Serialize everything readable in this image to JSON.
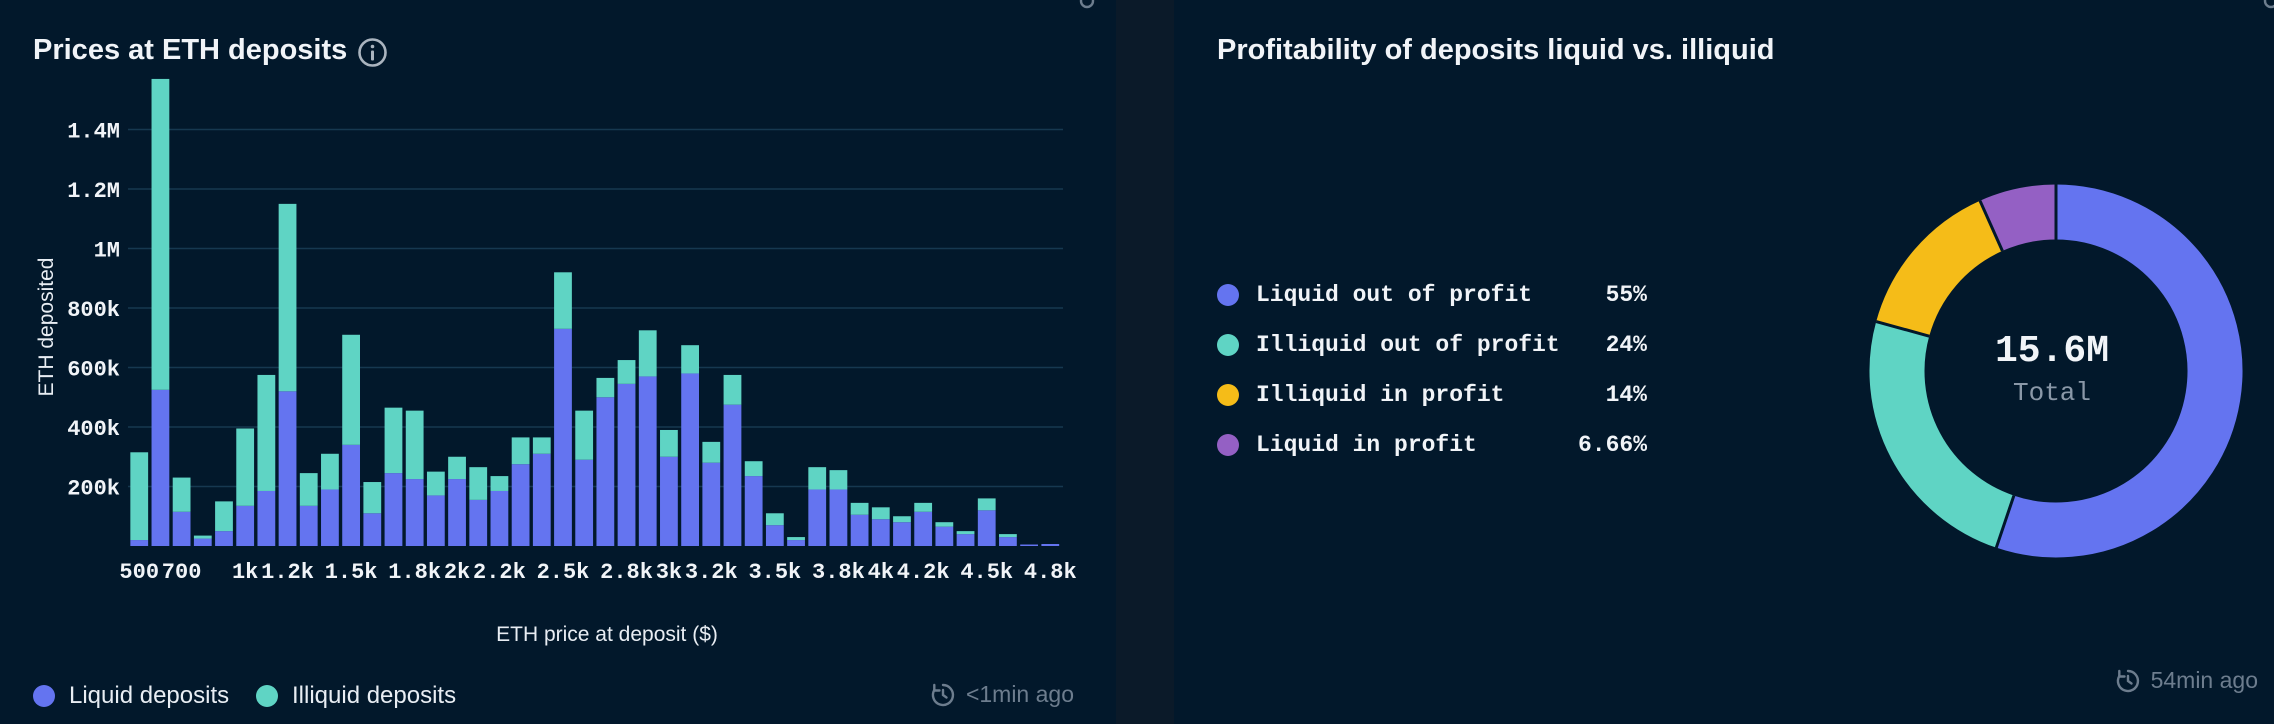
{
  "left": {
    "title": "Prices at ETH deposits",
    "timestamp": "<1min ago",
    "legend": [
      {
        "label": "Liquid deposits",
        "color": "#6474f0"
      },
      {
        "label": "Illiquid deposits",
        "color": "#5fd4c4"
      }
    ]
  },
  "right": {
    "title": "Profitability of deposits liquid vs. illiquid",
    "timestamp": "54min ago",
    "center_value": "15.6M",
    "center_label": "Total"
  },
  "chart_data": [
    {
      "type": "bar",
      "stacked": true,
      "title": "Prices at ETH deposits",
      "xlabel": "ETH price at deposit ($)",
      "ylabel": "ETH deposited",
      "xlim": [
        480,
        4860
      ],
      "ylim": [
        0,
        1600000
      ],
      "bin_width": 100,
      "x": [
        500,
        600,
        700,
        800,
        900,
        1000,
        1100,
        1200,
        1300,
        1400,
        1500,
        1600,
        1700,
        1800,
        1900,
        2000,
        2100,
        2200,
        2300,
        2400,
        2500,
        2600,
        2700,
        2800,
        2900,
        3000,
        3100,
        3200,
        3300,
        3400,
        3500,
        3600,
        3700,
        3800,
        3900,
        4000,
        4100,
        4200,
        4300,
        4400,
        4500,
        4600,
        4700,
        4800
      ],
      "series": [
        {
          "name": "Liquid deposits",
          "color": "#6474f0",
          "values": [
            20000,
            525000,
            115000,
            25000,
            50000,
            135000,
            185000,
            520000,
            135000,
            190000,
            340000,
            110000,
            245000,
            225000,
            170000,
            225000,
            155000,
            185000,
            275000,
            310000,
            730000,
            290000,
            500000,
            545000,
            570000,
            300000,
            580000,
            280000,
            475000,
            235000,
            70000,
            20000,
            190000,
            190000,
            105000,
            90000,
            80000,
            115000,
            65000,
            40000,
            120000,
            30000,
            5000,
            0
          ]
        },
        {
          "name": "Illiquid deposits",
          "color": "#5fd4c4",
          "values": [
            295000,
            1045000,
            115000,
            10000,
            100000,
            260000,
            390000,
            630000,
            110000,
            120000,
            370000,
            105000,
            220000,
            230000,
            80000,
            75000,
            110000,
            50000,
            90000,
            55000,
            190000,
            165000,
            65000,
            80000,
            155000,
            90000,
            95000,
            70000,
            100000,
            50000,
            40000,
            10000,
            75000,
            65000,
            40000,
            40000,
            20000,
            30000,
            15000,
            10000,
            40000,
            10000,
            0,
            0
          ]
        }
      ],
      "x_ticks": [
        "500",
        "700",
        "1k",
        "1.2k",
        "1.5k",
        "1.8k",
        "2k",
        "2.2k",
        "2.5k",
        "2.8k",
        "3k",
        "3.2k",
        "3.5k",
        "3.8k",
        "4k",
        "4.2k",
        "4.5k",
        "4.8k"
      ],
      "y_ticks": [
        "200k",
        "400k",
        "600k",
        "800k",
        "1M",
        "1.2M",
        "1.4M"
      ],
      "grid": true,
      "legend": "bottom-left"
    },
    {
      "type": "pie",
      "donut": true,
      "title": "Profitability of deposits liquid vs. illiquid",
      "total": "15.6M",
      "slices": [
        {
          "label": "Liquid out of profit",
          "value": 55,
          "display": "55%",
          "color": "#6474f0"
        },
        {
          "label": "Illiquid out of profit",
          "value": 24,
          "display": "24%",
          "color": "#5fd4c4"
        },
        {
          "label": "Illiquid in profit",
          "value": 14,
          "display": "14%",
          "color": "#f5bc18"
        },
        {
          "label": "Liquid in profit",
          "value": 6.66,
          "display": "6.66%",
          "color": "#9460c4"
        }
      ],
      "legend": "left"
    }
  ]
}
